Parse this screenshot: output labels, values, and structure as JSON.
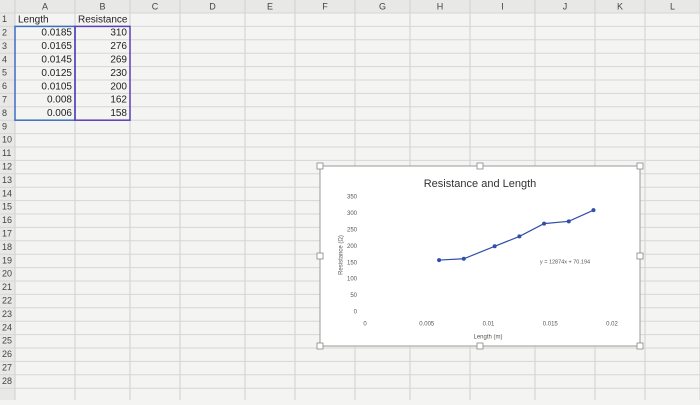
{
  "spreadsheet": {
    "columns": [
      "A",
      "B",
      "C",
      "D",
      "E",
      "F",
      "G",
      "H",
      "I",
      "J",
      "K",
      "L"
    ],
    "rows": [
      1,
      2,
      3,
      4,
      5,
      6,
      7,
      8,
      9,
      10,
      11,
      12,
      13,
      14,
      15,
      16,
      17,
      18,
      19,
      20,
      21,
      22,
      23,
      24,
      25,
      26,
      27,
      28
    ],
    "cells": [
      [
        "Length",
        "Resistance"
      ],
      [
        0.0185,
        310
      ],
      [
        0.0165,
        276
      ],
      [
        0.0145,
        269
      ],
      [
        0.0125,
        230
      ],
      [
        0.0105,
        200
      ],
      [
        0.008,
        162
      ],
      [
        0.006,
        158
      ]
    ]
  },
  "chart_data": {
    "type": "scatter",
    "title": "Resistance and Length",
    "x_label": "Length (m)",
    "y_label": "Resistance (Ω)",
    "trendline_label": "y = 12874x + 70.194",
    "x": [
      0.0185,
      0.0165,
      0.0145,
      0.0125,
      0.0105,
      0.008,
      0.006
    ],
    "values": [
      310,
      276,
      269,
      230,
      200,
      162,
      158
    ],
    "color": "#2f4fa8",
    "xlim": [
      0,
      0.02
    ],
    "xticks": [
      0,
      0.005,
      0.01,
      0.015,
      0.02
    ],
    "ylim": [
      0,
      350
    ],
    "yticks": [
      0,
      50,
      100,
      150,
      200,
      250,
      300,
      350
    ]
  }
}
